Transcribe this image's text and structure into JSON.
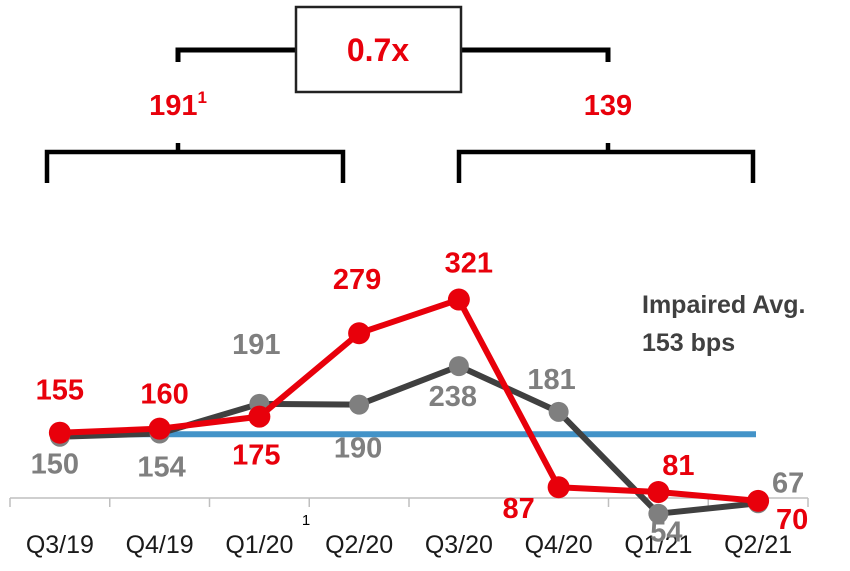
{
  "chart_data": {
    "type": "line",
    "categories": [
      "Q3/19",
      "Q4/19",
      "Q1/20",
      "Q2/20",
      "Q3/20",
      "Q4/20",
      "Q1/21",
      "Q2/21"
    ],
    "series": [
      {
        "name": "",
        "color": "#e8000b",
        "values": [
          155,
          160,
          175,
          279,
          321,
          87,
          81,
          70
        ],
        "labels": [
          "155",
          "160",
          "175",
          "279",
          "321",
          "87",
          "81",
          "70"
        ]
      },
      {
        "name": "",
        "color": "#404040",
        "values": [
          150,
          154,
          191,
          190,
          238,
          181,
          54,
          67
        ],
        "labels": [
          "150",
          "154",
          "191",
          "190",
          "238",
          "181",
          "54",
          "67"
        ]
      }
    ],
    "reference_line": {
      "label_line1": "Impaired Avg.",
      "label_line2": "153 bps",
      "value": 153,
      "color": "#4393c8"
    },
    "footnote_marker": "1",
    "ylim": [
      30,
      340
    ],
    "grid": false
  },
  "period_summary": {
    "left_value": "191",
    "left_superscript": "1",
    "right_value": "139",
    "ratio": "0.7x"
  },
  "colors": {
    "red": "#e8000b",
    "dark": "#404040",
    "gray_label": "#7f7f7f",
    "axis": "#bfbfbf",
    "blue": "#4393c8"
  }
}
